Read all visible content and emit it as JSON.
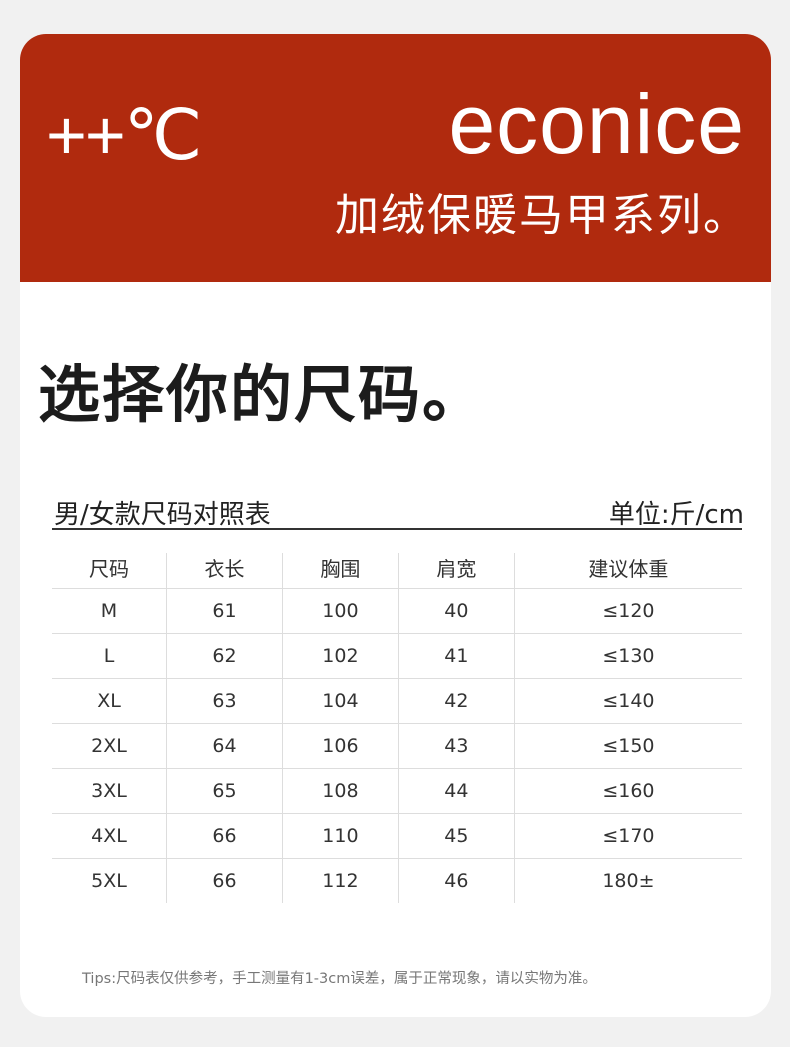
{
  "banner": {
    "logo": "++℃",
    "brand": "econice",
    "series": "加绒保暖马甲系列。",
    "color": "#b02a0e"
  },
  "title": "选择你的尺码。",
  "chart_label": "男/女款尺码对照表",
  "unit": "单位:斤/cm",
  "table": {
    "headers": [
      "尺码",
      "衣长",
      "胸围",
      "肩宽",
      "建议体重"
    ],
    "rows": [
      [
        "M",
        "61",
        "100",
        "40",
        "≤120"
      ],
      [
        "L",
        "62",
        "102",
        "41",
        "≤130"
      ],
      [
        "XL",
        "63",
        "104",
        "42",
        "≤140"
      ],
      [
        "2XL",
        "64",
        "106",
        "43",
        "≤150"
      ],
      [
        "3XL",
        "65",
        "108",
        "44",
        "≤160"
      ],
      [
        "4XL",
        "66",
        "110",
        "45",
        "≤170"
      ],
      [
        "5XL",
        "66",
        "112",
        "46",
        "180±"
      ]
    ]
  },
  "tips": "Tips:尺码表仅供参考，手工测量有1-3cm误差，属于正常现象，请以实物为准。"
}
